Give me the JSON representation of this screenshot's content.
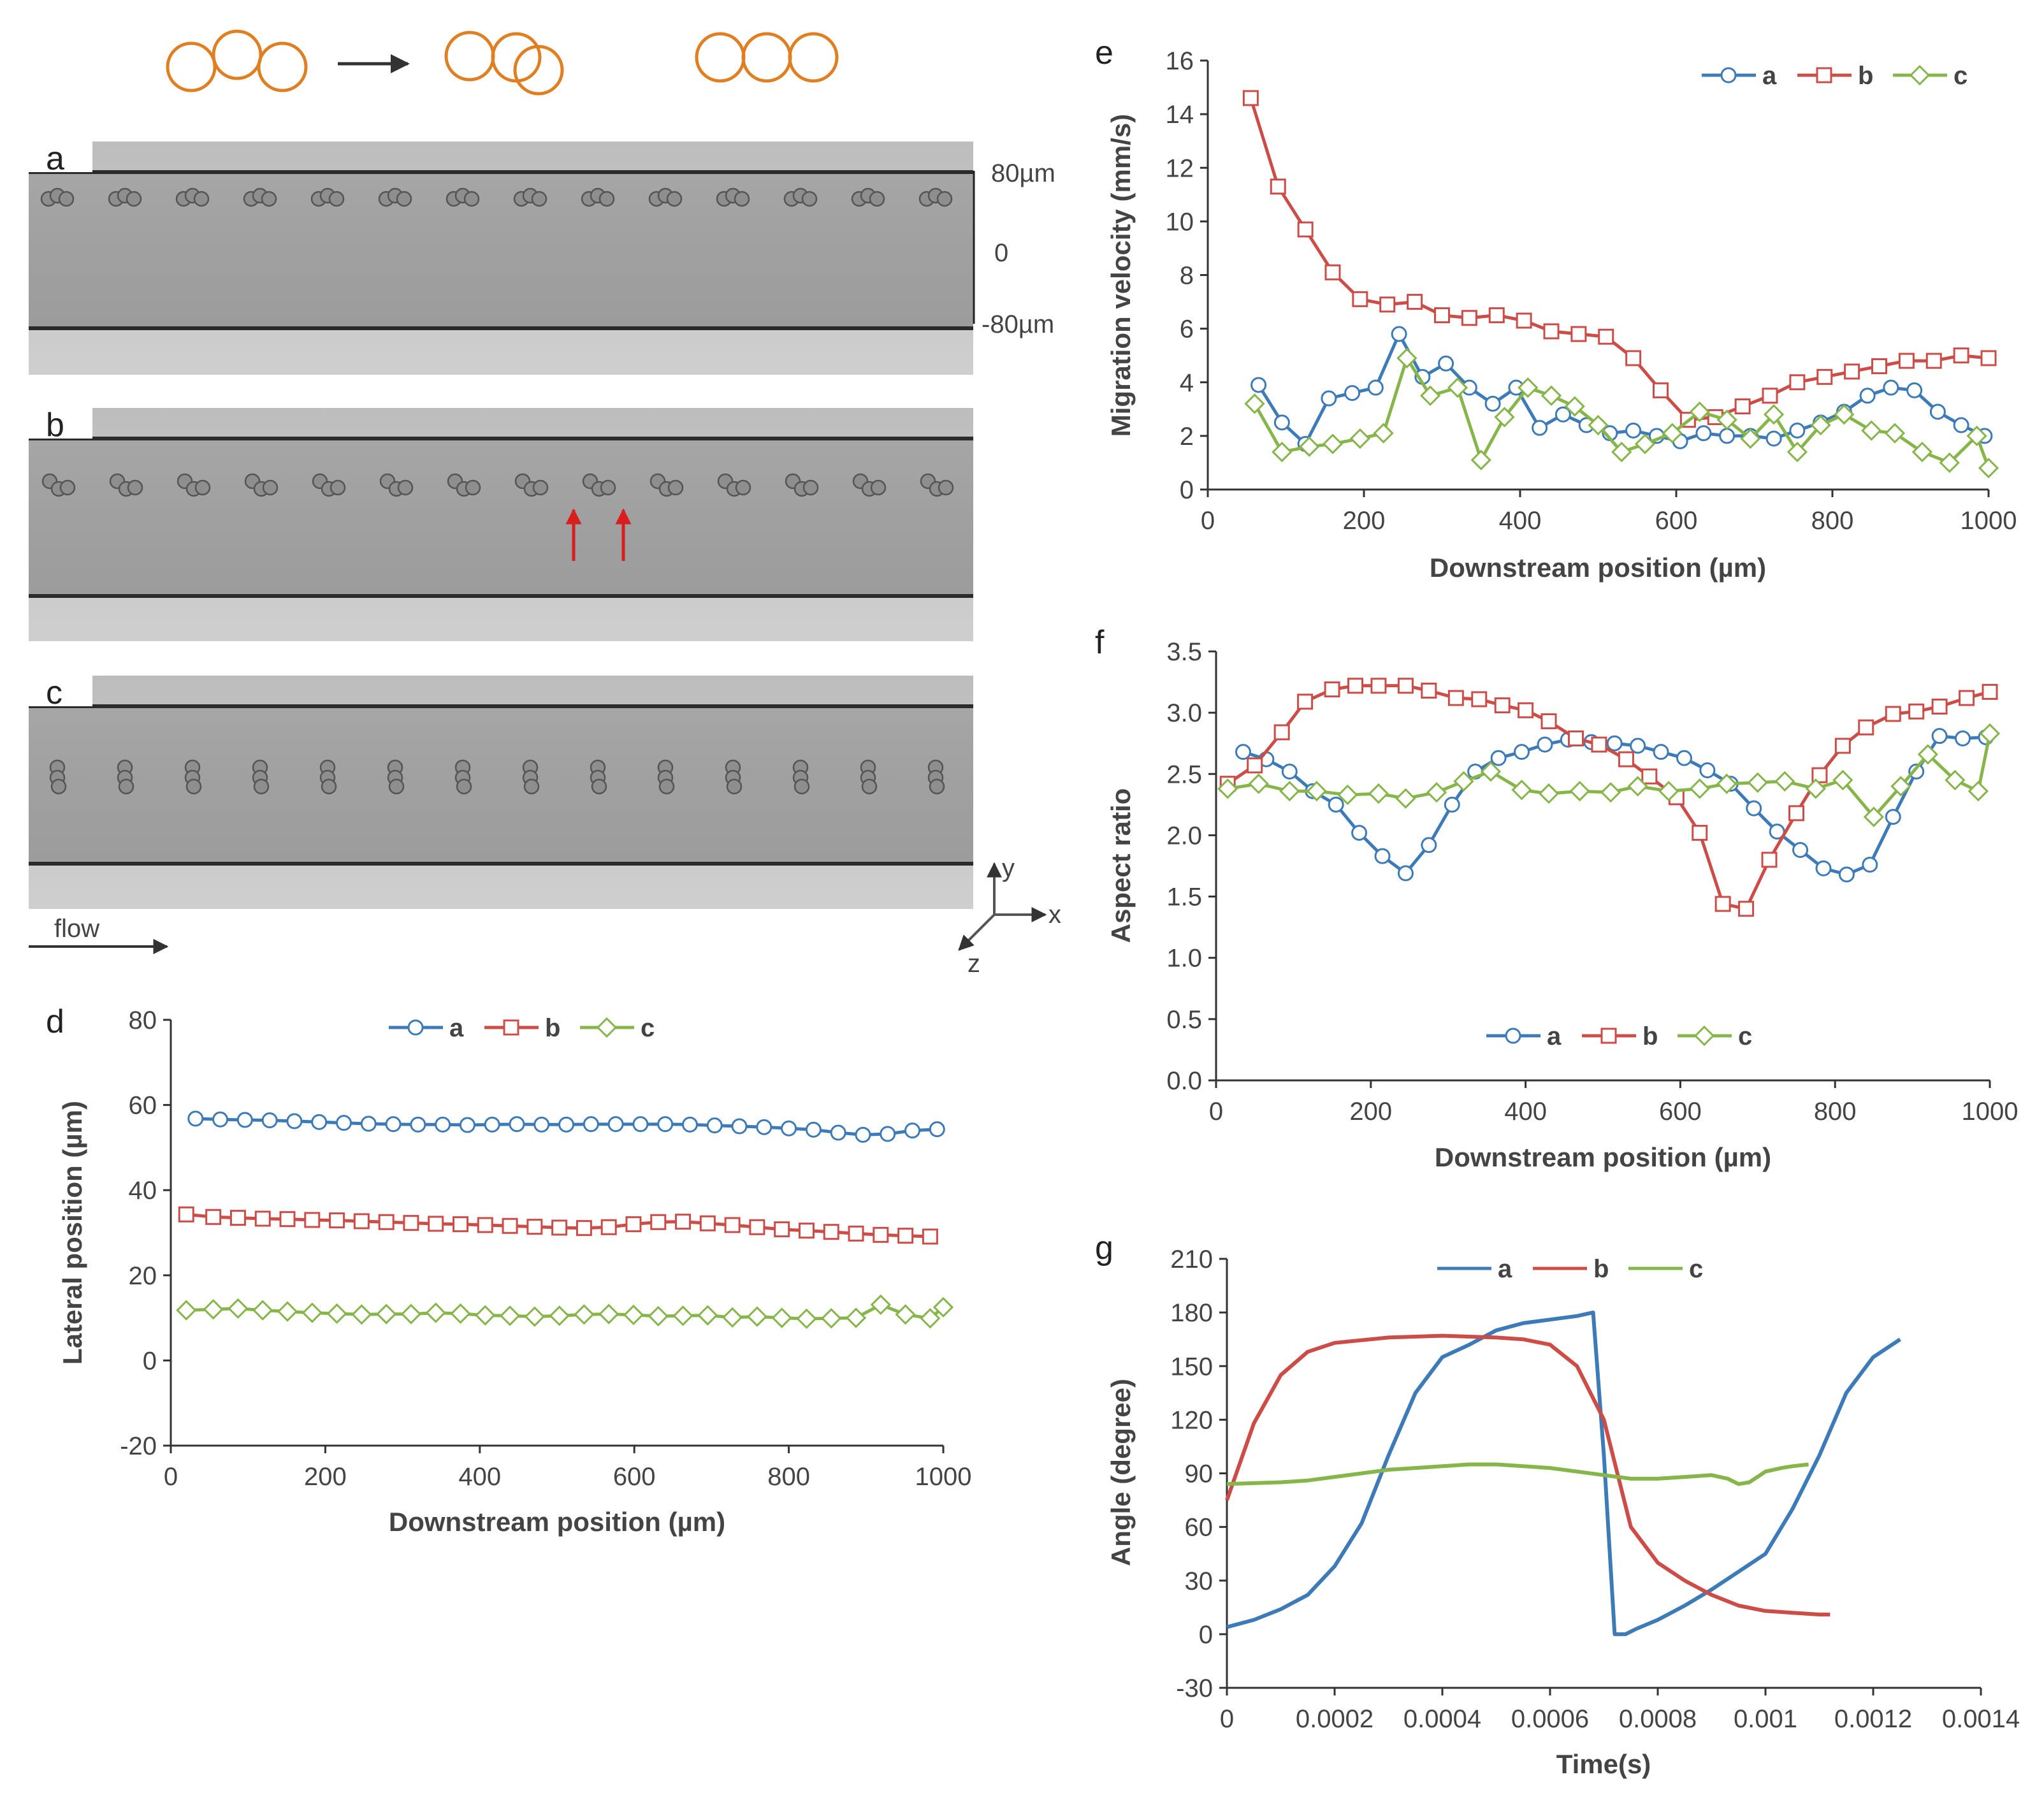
{
  "colors": {
    "a": "#3d7ab8",
    "b": "#cc4c47",
    "c": "#86b54a",
    "cell": "#e07f22",
    "arrow": "#d81f1f"
  },
  "images": {
    "panels": [
      {
        "letter": "a",
        "cell_pattern": "triplet"
      },
      {
        "letter": "b",
        "cell_pattern": "triplet-merging"
      },
      {
        "letter": "c",
        "cell_pattern": "vertical-stack"
      }
    ],
    "scale_labels": {
      "top": "80µm",
      "mid": "0",
      "bottom": "-80µm"
    },
    "flow_label": "flow",
    "axis_labels": {
      "y": "y",
      "x": "x",
      "z": "z"
    }
  },
  "chart_data": [
    {
      "panel": "d",
      "type": "line",
      "title": "",
      "xlabel": "Downstream position (µm)",
      "ylabel": "Lateral position (µm)",
      "xlim": [
        0,
        1000
      ],
      "ylim": [
        -20,
        80
      ],
      "xticks": [
        0,
        200,
        400,
        600,
        800,
        1000
      ],
      "yticks": [
        -20,
        0,
        20,
        40,
        60,
        80
      ],
      "legend": [
        "a",
        "b",
        "c"
      ],
      "series": [
        {
          "name": "a",
          "marker": "circle",
          "x": [
            32,
            64,
            96,
            128,
            160,
            192,
            224,
            256,
            288,
            320,
            352,
            384,
            416,
            448,
            480,
            512,
            544,
            576,
            608,
            640,
            672,
            704,
            736,
            768,
            800,
            832,
            864,
            896,
            928,
            960,
            992
          ],
          "y": [
            56.8,
            56.6,
            56.5,
            56.4,
            56.2,
            56,
            55.8,
            55.6,
            55.5,
            55.4,
            55.4,
            55.3,
            55.4,
            55.5,
            55.4,
            55.4,
            55.5,
            55.5,
            55.5,
            55.5,
            55.4,
            55.2,
            55,
            54.8,
            54.5,
            54.2,
            53.5,
            53,
            53.2,
            54,
            54.3
          ]
        },
        {
          "name": "b",
          "marker": "square",
          "x": [
            20,
            55,
            87,
            119,
            151,
            183,
            215,
            247,
            279,
            311,
            343,
            375,
            407,
            439,
            471,
            503,
            535,
            567,
            599,
            631,
            663,
            695,
            727,
            759,
            791,
            823,
            855,
            887,
            919,
            951,
            983
          ],
          "y": [
            34.3,
            33.7,
            33.5,
            33.3,
            33.2,
            33,
            32.9,
            32.7,
            32.5,
            32.3,
            32.1,
            32,
            31.8,
            31.6,
            31.4,
            31.2,
            31.1,
            31.3,
            32,
            32.5,
            32.6,
            32.2,
            31.8,
            31.3,
            30.8,
            30.5,
            30.2,
            29.8,
            29.5,
            29.3,
            29.1
          ]
        },
        {
          "name": "c",
          "marker": "diamond",
          "x": [
            20,
            55,
            87,
            119,
            151,
            183,
            215,
            247,
            279,
            311,
            343,
            375,
            407,
            439,
            471,
            503,
            535,
            567,
            599,
            631,
            663,
            695,
            727,
            759,
            791,
            823,
            855,
            887,
            919,
            951,
            983,
            1000
          ],
          "y": [
            11.8,
            12,
            12.2,
            11.8,
            11.5,
            11.2,
            11,
            10.8,
            10.9,
            10.9,
            11.2,
            11,
            10.6,
            10.5,
            10.3,
            10.5,
            10.8,
            10.9,
            10.7,
            10.4,
            10.5,
            10.6,
            10.1,
            10.3,
            10,
            9.8,
            9.9,
            10,
            13.1,
            10.8,
            9.9,
            12.5
          ]
        }
      ]
    },
    {
      "panel": "e",
      "type": "line",
      "title": "",
      "xlabel": "Downstream position (µm)",
      "ylabel": "Migration velocity (mm/s)",
      "xlim": [
        0,
        1000
      ],
      "ylim": [
        0,
        16
      ],
      "xticks": [
        0,
        200,
        400,
        600,
        800,
        1000
      ],
      "yticks": [
        0,
        2,
        4,
        6,
        8,
        10,
        12,
        14,
        16
      ],
      "legend": [
        "a",
        "b",
        "c"
      ],
      "series": [
        {
          "name": "a",
          "marker": "circle",
          "x": [
            65,
            95,
            125,
            155,
            185,
            215,
            245,
            275,
            305,
            335,
            365,
            395,
            425,
            455,
            485,
            515,
            545,
            575,
            605,
            635,
            665,
            695,
            725,
            755,
            785,
            815,
            845,
            875,
            905,
            935,
            965,
            995
          ],
          "y": [
            3.9,
            2.5,
            1.7,
            3.4,
            3.6,
            3.8,
            5.8,
            4.2,
            4.7,
            3.8,
            3.2,
            3.8,
            2.3,
            2.8,
            2.4,
            2.1,
            2.2,
            2.0,
            1.8,
            2.1,
            2.0,
            2.0,
            1.9,
            2.2,
            2.5,
            2.9,
            3.5,
            3.8,
            3.7,
            2.9,
            2.4,
            2.0
          ]
        },
        {
          "name": "b",
          "marker": "square",
          "x": [
            55,
            90,
            125,
            160,
            195,
            230,
            265,
            300,
            335,
            370,
            405,
            440,
            475,
            510,
            545,
            580,
            615,
            650,
            685,
            720,
            755,
            790,
            825,
            860,
            895,
            930,
            965,
            1000
          ],
          "y": [
            14.6,
            11.3,
            9.7,
            8.1,
            7.1,
            6.9,
            7.0,
            6.5,
            6.4,
            6.5,
            6.3,
            5.9,
            5.8,
            5.7,
            4.9,
            3.7,
            2.6,
            2.7,
            3.1,
            3.5,
            4.0,
            4.2,
            4.4,
            4.6,
            4.8,
            4.8,
            5.0,
            4.9
          ]
        },
        {
          "name": "c",
          "marker": "diamond",
          "x": [
            60,
            95,
            130,
            160,
            195,
            225,
            255,
            285,
            320,
            350,
            380,
            410,
            440,
            470,
            500,
            530,
            560,
            595,
            630,
            665,
            695,
            725,
            755,
            785,
            815,
            850,
            880,
            915,
            950,
            985,
            1000
          ],
          "y": [
            3.2,
            1.4,
            1.6,
            1.7,
            1.9,
            2.1,
            4.9,
            3.5,
            3.8,
            1.1,
            2.7,
            3.8,
            3.5,
            3.1,
            2.4,
            1.4,
            1.7,
            2.1,
            2.9,
            2.6,
            1.9,
            2.8,
            1.4,
            2.4,
            2.8,
            2.2,
            2.1,
            1.4,
            1.0,
            2.0,
            0.8
          ]
        }
      ]
    },
    {
      "panel": "f",
      "type": "line",
      "title": "",
      "xlabel": "Downstream position (µm)",
      "ylabel": "Aspect ratio",
      "xlim": [
        0,
        1000
      ],
      "ylim": [
        0.0,
        3.5
      ],
      "xticks": [
        0,
        200,
        400,
        600,
        800,
        1000
      ],
      "yticks": [
        "0.0",
        "0.5",
        "1.0",
        "1.5",
        "2.0",
        "2.5",
        "3.0",
        "3.5"
      ],
      "legend": [
        "a",
        "b",
        "c"
      ],
      "series": [
        {
          "name": "a",
          "marker": "circle",
          "x": [
            35,
            65,
            95,
            125,
            155,
            185,
            215,
            245,
            275,
            305,
            335,
            365,
            395,
            425,
            455,
            485,
            515,
            545,
            575,
            605,
            635,
            665,
            695,
            725,
            755,
            785,
            815,
            845,
            875,
            905,
            935,
            965,
            995
          ],
          "y": [
            2.68,
            2.62,
            2.52,
            2.36,
            2.25,
            2.02,
            1.83,
            1.69,
            1.92,
            2.25,
            2.52,
            2.63,
            2.68,
            2.74,
            2.78,
            2.76,
            2.75,
            2.73,
            2.68,
            2.63,
            2.53,
            2.42,
            2.22,
            2.03,
            1.88,
            1.73,
            1.68,
            1.76,
            2.15,
            2.52,
            2.81,
            2.79,
            2.8
          ]
        },
        {
          "name": "b",
          "marker": "square",
          "x": [
            15,
            50,
            85,
            115,
            150,
            180,
            210,
            245,
            275,
            310,
            340,
            370,
            400,
            430,
            465,
            495,
            530,
            560,
            595,
            625,
            655,
            685,
            715,
            750,
            780,
            810,
            840,
            875,
            905,
            935,
            970,
            1000
          ],
          "y": [
            2.42,
            2.57,
            2.84,
            3.09,
            3.19,
            3.22,
            3.22,
            3.22,
            3.18,
            3.12,
            3.11,
            3.06,
            3.02,
            2.93,
            2.79,
            2.74,
            2.62,
            2.48,
            2.31,
            2.02,
            1.44,
            1.4,
            1.8,
            2.18,
            2.49,
            2.73,
            2.88,
            2.99,
            3.01,
            3.05,
            3.12,
            3.17
          ]
        },
        {
          "name": "c",
          "marker": "diamond",
          "x": [
            15,
            55,
            95,
            130,
            170,
            210,
            245,
            285,
            320,
            355,
            395,
            430,
            470,
            510,
            545,
            585,
            625,
            660,
            700,
            735,
            775,
            810,
            850,
            885,
            920,
            955,
            985,
            1000
          ],
          "y": [
            2.38,
            2.42,
            2.36,
            2.36,
            2.33,
            2.34,
            2.3,
            2.35,
            2.44,
            2.52,
            2.37,
            2.34,
            2.36,
            2.35,
            2.4,
            2.36,
            2.38,
            2.42,
            2.43,
            2.44,
            2.38,
            2.45,
            2.15,
            2.4,
            2.66,
            2.45,
            2.36,
            2.83
          ]
        }
      ]
    },
    {
      "panel": "g",
      "type": "line",
      "title": "",
      "xlabel": "Time(s)",
      "ylabel": "Angle (degree)",
      "xlim": [
        0,
        0.0014
      ],
      "ylim": [
        -30,
        210
      ],
      "xticks": [
        "0",
        "0.0002",
        "0.0004",
        "0.0006",
        "0.0008",
        "0.001",
        "0.0012",
        "0.0014"
      ],
      "yticks": [
        -30,
        0,
        30,
        60,
        90,
        120,
        150,
        180,
        210
      ],
      "legend": [
        "a",
        "b",
        "c"
      ],
      "series": [
        {
          "name": "a",
          "marker": "none",
          "x": [
            0,
            5e-05,
            0.0001,
            0.00015,
            0.0002,
            0.00025,
            0.0003,
            0.00035,
            0.0004,
            0.00045,
            0.0005,
            0.00055,
            0.0006,
            0.00065,
            0.00068,
            0.0007,
            0.00072,
            0.00074,
            0.00076,
            0.0008,
            0.00085,
            0.0009,
            0.00095,
            0.001,
            0.00105,
            0.0011,
            0.00115,
            0.0012,
            0.00125
          ],
          "y": [
            4,
            8,
            14,
            22,
            38,
            62,
            100,
            135,
            155,
            162,
            170,
            174,
            176,
            178,
            180,
            100,
            0,
            0,
            3,
            8,
            16,
            25,
            35,
            45,
            70,
            100,
            135,
            155,
            165
          ]
        },
        {
          "name": "b",
          "marker": "none",
          "x": [
            0,
            5e-05,
            0.0001,
            0.00015,
            0.0002,
            0.0003,
            0.0004,
            0.0005,
            0.00055,
            0.0006,
            0.00065,
            0.0007,
            0.00075,
            0.0008,
            0.00085,
            0.0009,
            0.00095,
            0.001,
            0.00105,
            0.0011,
            0.00112
          ],
          "y": [
            75,
            118,
            145,
            158,
            163,
            166,
            167,
            166,
            165,
            162,
            150,
            120,
            60,
            40,
            30,
            22,
            16,
            13,
            12,
            11,
            11
          ]
        },
        {
          "name": "c",
          "marker": "none",
          "x": [
            0,
            0.0001,
            0.00015,
            0.0002,
            0.00025,
            0.0003,
            0.00035,
            0.0004,
            0.00045,
            0.0005,
            0.00055,
            0.0006,
            0.00065,
            0.0007,
            0.00075,
            0.0008,
            0.00085,
            0.0009,
            0.00093,
            0.00095,
            0.00097,
            0.001,
            0.00103,
            0.00105,
            0.00108
          ],
          "y": [
            84,
            85,
            86,
            88,
            90,
            92,
            93,
            94,
            95,
            95,
            94,
            93,
            91,
            89,
            87,
            87,
            88,
            89,
            87,
            84,
            85,
            91,
            93,
            94,
            95
          ]
        }
      ]
    }
  ]
}
